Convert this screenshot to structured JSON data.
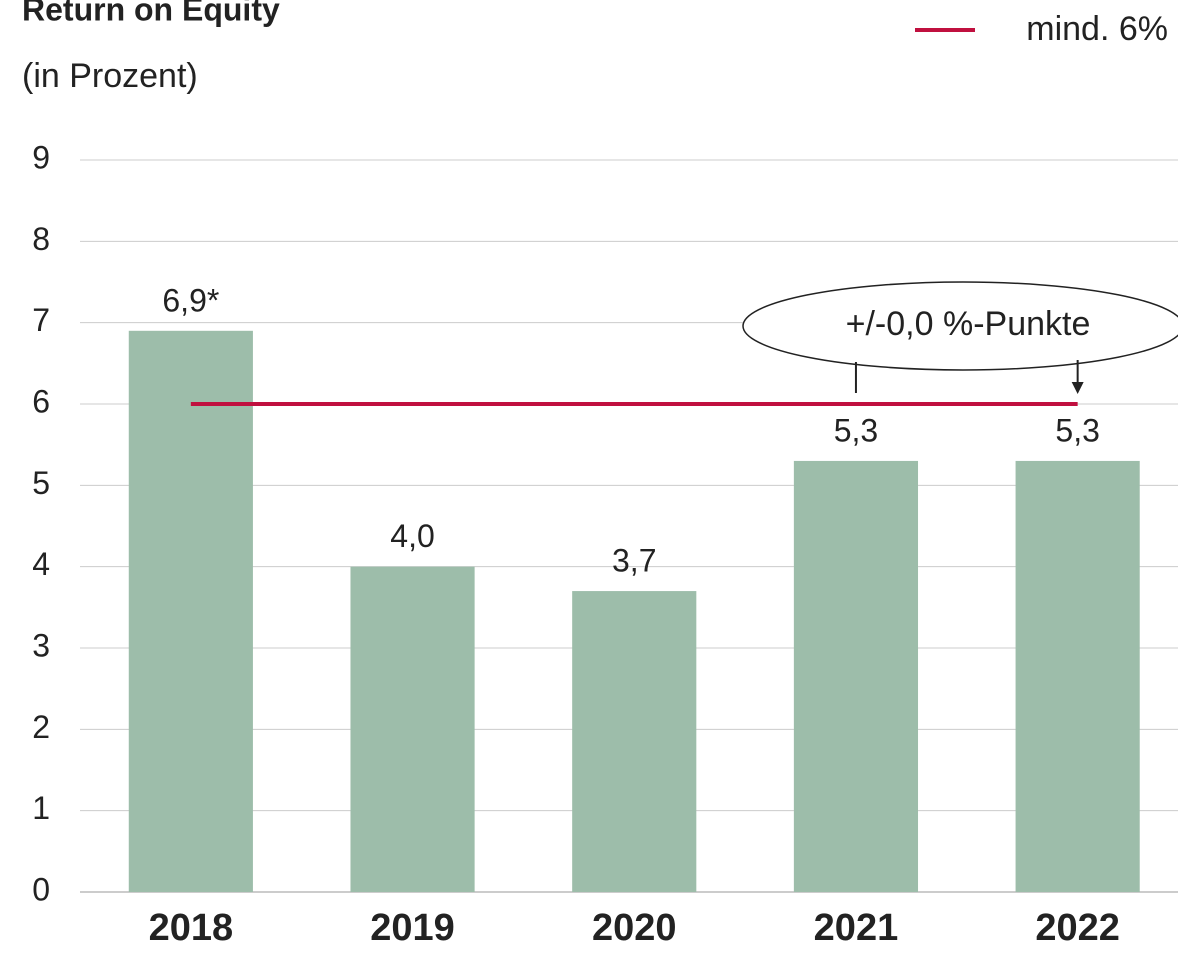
{
  "chart_data": {
    "type": "bar",
    "title": "Return on Equity",
    "subtitle": "(in Prozent)",
    "categories": [
      "2018",
      "2019",
      "2020",
      "2021",
      "2022"
    ],
    "values": [
      6.9,
      4.0,
      3.7,
      5.3,
      5.3
    ],
    "value_labels": [
      "6,9*",
      "4,0",
      "3,7",
      "5,3",
      "5,3"
    ],
    "color": "#9dbdaa",
    "ylim": [
      0,
      9
    ],
    "yticks": [
      0,
      1,
      2,
      3,
      4,
      5,
      6,
      7,
      8,
      9
    ],
    "grid": true,
    "threshold": {
      "name": "mind. 6%",
      "value": 6,
      "color": "#c0103f"
    },
    "legend": "top-right",
    "annotation": "+/-0,0 %-Punkte"
  }
}
